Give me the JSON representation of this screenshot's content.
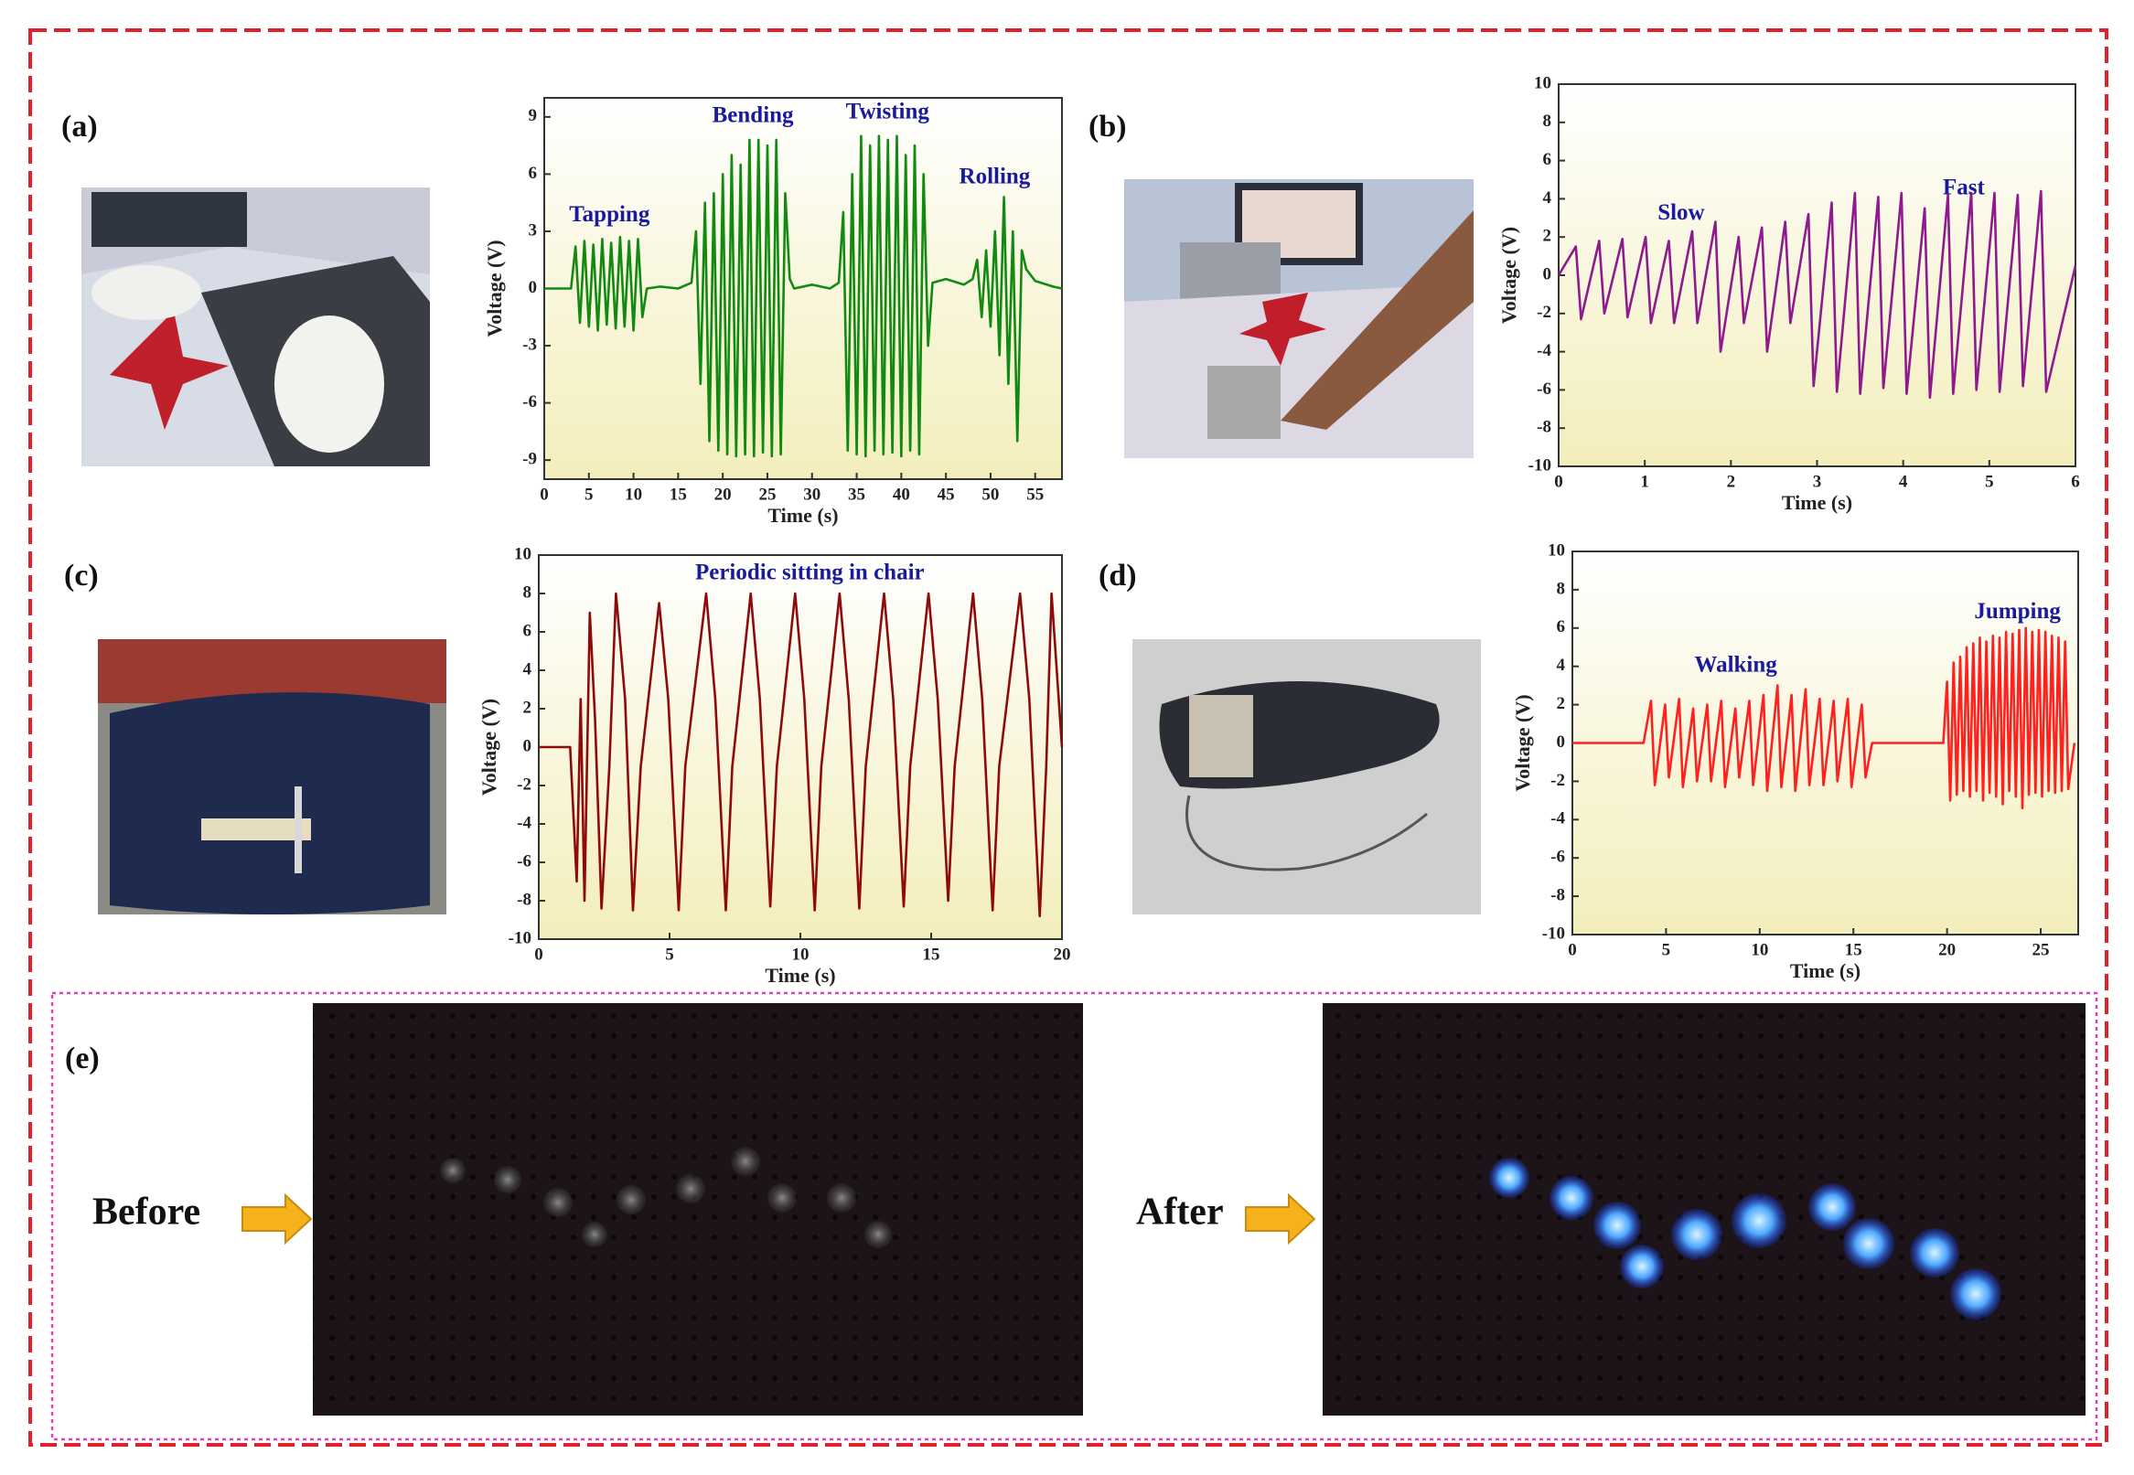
{
  "panel_labels": [
    "(a)",
    "(b)",
    "(c)",
    "(d)",
    "(e)"
  ],
  "before_label": "Before",
  "after_label": "After",
  "chart_data": [
    {
      "type": "line",
      "x_label": "Time (s)",
      "y_label": "Voltage (V)",
      "color": "#128a12",
      "annotations": [
        "Tapping",
        "Bending",
        "Twisting",
        "Rolling"
      ],
      "xlim": [
        0,
        58
      ],
      "xticks": [
        0,
        5,
        10,
        15,
        20,
        25,
        30,
        35,
        40,
        45,
        50,
        55
      ],
      "ylim": [
        -10,
        10
      ],
      "yticks": [
        -9,
        -6,
        -3,
        0,
        3,
        6,
        9
      ],
      "x": [
        0,
        2,
        3,
        3.5,
        4,
        4.5,
        5,
        5.5,
        6,
        6.5,
        7,
        7.5,
        8,
        8.5,
        9,
        9.5,
        10,
        10.5,
        11,
        11.5,
        13,
        15,
        16.5,
        17,
        17.5,
        18,
        18.5,
        19,
        19.5,
        20,
        20.5,
        21,
        21.5,
        22,
        22.5,
        23,
        23.5,
        24,
        24.5,
        25,
        25.5,
        26,
        26.5,
        27,
        27.5,
        28,
        30,
        32,
        33,
        33.5,
        34,
        34.5,
        35,
        35.5,
        36,
        36.5,
        37,
        37.5,
        38,
        38.5,
        39,
        39.5,
        40,
        40.5,
        41,
        41.5,
        42,
        42.5,
        43,
        43.5,
        45,
        47,
        48,
        48.5,
        49,
        49.5,
        50,
        50.5,
        51,
        51.5,
        52,
        52.5,
        53,
        53.5,
        54,
        55,
        57,
        58
      ],
      "values": [
        0,
        0,
        0,
        2.2,
        -1.8,
        2.5,
        -2,
        2.3,
        -2.2,
        2.6,
        -1.9,
        2.4,
        -2.1,
        2.7,
        -2,
        2.5,
        -2.2,
        2.6,
        -1.5,
        0,
        0.1,
        0,
        0.3,
        3,
        -5,
        4.5,
        -8,
        5,
        -8.5,
        6,
        -8.7,
        7,
        -8.8,
        6.5,
        -8.7,
        7.8,
        -8.8,
        7.8,
        -8.6,
        7.5,
        -8.8,
        7.8,
        -8.7,
        5,
        0.5,
        0,
        0.2,
        0,
        0.3,
        4,
        -8.5,
        6,
        -8.7,
        8,
        -8.8,
        7.5,
        -8.5,
        8,
        -8.7,
        7.8,
        -8.6,
        8,
        -8.8,
        7,
        -8.5,
        7.5,
        -8.7,
        6,
        -3,
        0.3,
        0.5,
        0.2,
        0.5,
        1.5,
        -1.5,
        2,
        -2,
        3,
        -3.5,
        4.8,
        -5,
        3,
        -8,
        2,
        1,
        0.4,
        0.1,
        0
      ]
    },
    {
      "type": "line",
      "x_label": "Time (s)",
      "y_label": "Voltage (V)",
      "color": "#8e1a8e",
      "annotations": [
        "Slow",
        "Fast"
      ],
      "xlim": [
        0,
        6
      ],
      "xticks": [
        0,
        1,
        2,
        3,
        4,
        5,
        6
      ],
      "ylim": [
        -10,
        10
      ],
      "yticks": [
        -10,
        -8,
        -6,
        -4,
        -2,
        0,
        2,
        4,
        6,
        8,
        10
      ],
      "x": [
        0,
        0.2,
        0.26,
        0.47,
        0.53,
        0.74,
        0.8,
        1.01,
        1.07,
        1.28,
        1.34,
        1.55,
        1.61,
        1.82,
        1.88,
        2.09,
        2.15,
        2.36,
        2.42,
        2.63,
        2.69,
        2.9,
        2.96,
        3.17,
        3.23,
        3.44,
        3.5,
        3.71,
        3.77,
        3.98,
        4.04,
        4.25,
        4.31,
        4.52,
        4.58,
        4.79,
        4.85,
        5.06,
        5.12,
        5.33,
        5.39,
        5.6,
        5.66,
        6
      ],
      "values": [
        0,
        1.5,
        -2.3,
        1.8,
        -2,
        1.9,
        -2.2,
        2,
        -2.5,
        1.8,
        -2.5,
        2.3,
        -2.5,
        2.8,
        -4,
        2,
        -2.5,
        2.5,
        -4,
        2.8,
        -2.5,
        3.2,
        -5.8,
        3.8,
        -6.1,
        4.3,
        -6.2,
        4.1,
        -5.9,
        4.3,
        -6.2,
        3.5,
        -6.4,
        4.2,
        -6.2,
        4.3,
        -6,
        4.3,
        -6.1,
        4.2,
        -5.8,
        4.4,
        -6.1,
        0.5
      ]
    },
    {
      "type": "line",
      "x_label": "Time (s)",
      "y_label": "Voltage (V)",
      "color": "#8f0a0a",
      "annotations": [
        "Periodic sitting in chair"
      ],
      "xlim": [
        0,
        20
      ],
      "xticks": [
        0,
        5,
        10,
        15,
        20
      ],
      "ylim": [
        -10,
        10
      ],
      "yticks": [
        -10,
        -8,
        -6,
        -4,
        -2,
        0,
        2,
        4,
        6,
        8,
        10
      ],
      "x": [
        0,
        1.2,
        1.45,
        1.6,
        1.75,
        1.95,
        2.15,
        2.4,
        2.7,
        2.95,
        3.3,
        3.6,
        3.9,
        4.6,
        4.95,
        5.35,
        5.6,
        6.4,
        6.75,
        7.15,
        7.4,
        8.1,
        8.45,
        8.85,
        9.1,
        9.8,
        10.15,
        10.55,
        10.8,
        11.5,
        11.85,
        12.25,
        12.5,
        13.2,
        13.55,
        13.95,
        14.2,
        14.9,
        15.25,
        15.65,
        15.9,
        16.6,
        16.95,
        17.35,
        17.6,
        18.4,
        18.75,
        19.15,
        19.4,
        19.6,
        20
      ],
      "values": [
        0,
        0,
        -7,
        2.5,
        -8,
        7,
        1.5,
        -8.4,
        -1,
        8,
        2.5,
        -8.5,
        -1,
        7.5,
        2.5,
        -8.5,
        -1,
        8,
        2.5,
        -8.5,
        -1,
        8,
        2.5,
        -8.3,
        -1,
        8,
        2.5,
        -8.5,
        -1,
        8,
        2.5,
        -8.4,
        -1,
        8,
        2.5,
        -8.3,
        -1,
        8,
        2.5,
        -8,
        -1,
        8,
        2.5,
        -8.5,
        -1,
        8,
        2.5,
        -8.8,
        -1,
        8,
        0
      ]
    },
    {
      "type": "line",
      "x_label": "Time (s)",
      "y_label": "Voltage (V)",
      "color": "#ff2020",
      "annotations": [
        "Walking",
        "Jumping"
      ],
      "xlim": [
        0,
        27
      ],
      "xticks": [
        0,
        5,
        10,
        15,
        20,
        25
      ],
      "ylim": [
        -10,
        10
      ],
      "yticks": [
        -10,
        -8,
        -6,
        -4,
        -2,
        0,
        2,
        4,
        6,
        8,
        10
      ],
      "x": [
        0,
        3.8,
        4.2,
        4.4,
        4.95,
        5.15,
        5.7,
        5.9,
        6.45,
        6.65,
        7.2,
        7.4,
        7.95,
        8.15,
        8.7,
        8.9,
        9.45,
        9.65,
        10.2,
        10.4,
        10.95,
        11.15,
        11.7,
        11.9,
        12.45,
        12.65,
        13.2,
        13.4,
        13.95,
        14.15,
        14.7,
        14.9,
        15.45,
        15.65,
        16,
        19.8,
        20,
        20.17,
        20.35,
        20.52,
        20.7,
        20.87,
        21.05,
        21.22,
        21.4,
        21.57,
        21.75,
        21.92,
        22.1,
        22.27,
        22.45,
        22.62,
        22.8,
        22.97,
        23.15,
        23.32,
        23.5,
        23.67,
        23.85,
        24.02,
        24.2,
        24.37,
        24.55,
        24.72,
        24.9,
        25.07,
        25.25,
        25.42,
        25.6,
        25.77,
        25.95,
        26.12,
        26.3,
        26.47,
        26.8
      ],
      "values": [
        0,
        0,
        2.2,
        -2.2,
        2,
        -1.8,
        2.3,
        -2.3,
        1.8,
        -2,
        2,
        -2,
        2.2,
        -2.3,
        1.8,
        -1.8,
        2.2,
        -2.2,
        2.5,
        -2.5,
        3,
        -2.3,
        2.5,
        -2.5,
        2.8,
        -2.2,
        2.3,
        -2.2,
        2.2,
        -2,
        2.3,
        -2.3,
        2,
        -1.8,
        0,
        0,
        3.2,
        -3,
        4.2,
        -2.7,
        4.5,
        -2.5,
        5,
        -2.8,
        5.2,
        -2.5,
        5.5,
        -3,
        5.3,
        -2.6,
        5.6,
        -2.8,
        5.5,
        -3.2,
        5.8,
        -2.5,
        5.7,
        -2.8,
        5.9,
        -3.4,
        6,
        -2.7,
        5.8,
        -2.6,
        5.9,
        -2.8,
        5.8,
        -2.5,
        5.6,
        -2.6,
        5.5,
        -2.5,
        5.3,
        -2.4,
        0
      ]
    }
  ]
}
